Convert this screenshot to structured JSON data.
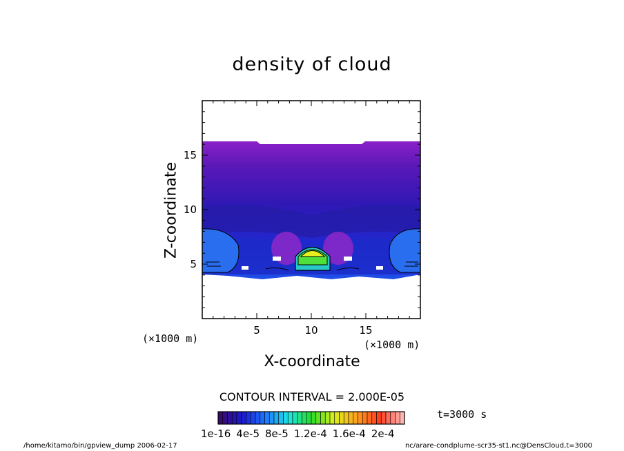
{
  "chart_data": {
    "type": "heatmap",
    "title": "density of cloud",
    "xlabel": "X-coordinate",
    "ylabel": "Z-coordinate",
    "x_unit": "(×1000 m)",
    "y_unit": "(×1000 m)",
    "xlim": [
      0,
      20
    ],
    "ylim": [
      0,
      20
    ],
    "xticks": [
      5,
      10,
      15
    ],
    "yticks": [
      5,
      10,
      15
    ],
    "contour_interval": "CONTOUR INTERVAL = 2.000E-05",
    "time_label": "t=3000 s",
    "colorbar_labels": [
      "1e-16",
      "4e-5",
      "8e-5",
      "1.2e-4",
      "1.6e-4",
      "2e-4"
    ],
    "colorbar_range": [
      0,
      0.0002
    ],
    "colorbar_colors": [
      "#3a0a6e",
      "#1c1cd2",
      "#1e78ff",
      "#1ee6e6",
      "#28dc28",
      "#dcf01e",
      "#ffa01e",
      "#ff3c1e",
      "#ffb4b4"
    ]
  },
  "footer": {
    "left": "/home/kitamo/bin/gpview_dump  2006-02-17",
    "right": "nc/arare-condplume-scr35-st1.nc@DensCloud,t=3000"
  }
}
